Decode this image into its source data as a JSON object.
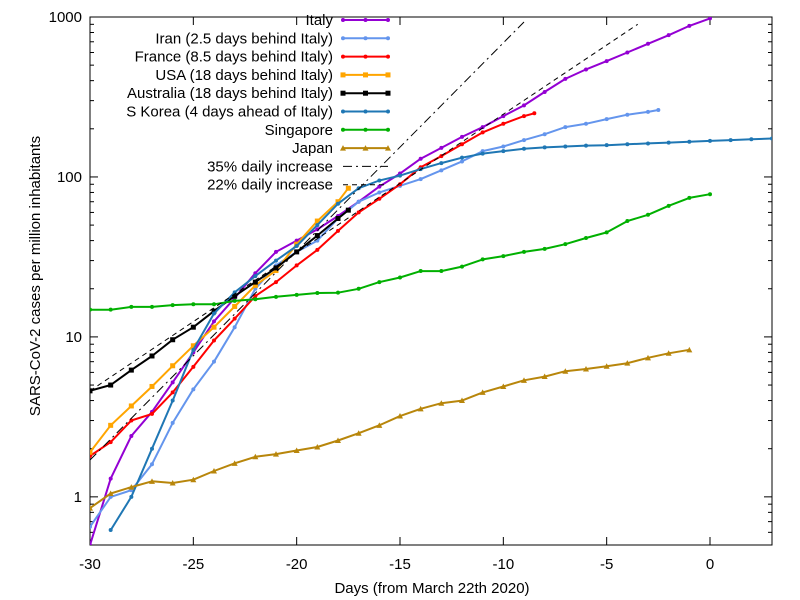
{
  "chart_data": {
    "type": "line",
    "title": "",
    "xlabel": "Days (from March 22th 2020)",
    "ylabel": "SARS-CoV-2 cases per million inhabitants",
    "yscale": "log",
    "xlim": [
      -30,
      3
    ],
    "ylim": [
      0.5,
      1000
    ],
    "x_ticks": [
      -30,
      -25,
      -20,
      -15,
      -10,
      -5,
      0
    ],
    "x_tick_labels": [
      "-30",
      "-25",
      "-20",
      "-15",
      "-10",
      "-5",
      "0"
    ],
    "y_ticks": [
      1,
      10,
      100,
      1000
    ],
    "y_tick_labels": [
      "1",
      "10",
      "100",
      "1000"
    ],
    "legend_position": "top-right",
    "series": [
      {
        "name": "Italy",
        "color": "#9400d3",
        "marker": "dot",
        "x": [
          -30,
          -29,
          -28,
          -27,
          -26,
          -25,
          -24,
          -23,
          -22,
          -21,
          -20,
          -19,
          -18,
          -17,
          -16,
          -15,
          -14,
          -13,
          -12,
          -11,
          -10,
          -9,
          -8,
          -7,
          -6,
          -5,
          -4,
          -3,
          -2,
          -1,
          0
        ],
        "y": [
          0.5,
          1.3,
          2.4,
          3.4,
          5.2,
          8.0,
          12.5,
          17.5,
          25,
          34,
          40,
          47,
          57,
          70,
          87,
          105,
          130,
          152,
          178,
          205,
          240,
          280,
          340,
          410,
          470,
          530,
          600,
          680,
          770,
          880,
          980
        ]
      },
      {
        "name": "Iran (2.5 days behind Italy)",
        "color": "#6495ed",
        "marker": "dot",
        "x": [
          -30,
          -29,
          -28,
          -27,
          -26,
          -25,
          -24,
          -23,
          -22,
          -21,
          -20,
          -19,
          -18,
          -17,
          -16,
          -15,
          -14,
          -13,
          -12,
          -11,
          -10,
          -9,
          -8,
          -7,
          -6,
          -5,
          -4,
          -3,
          -2.5
        ],
        "y": [
          0.65,
          1.0,
          1.1,
          1.6,
          2.9,
          4.7,
          7.0,
          11.5,
          20,
          28,
          34,
          40,
          55,
          70,
          80,
          88,
          97,
          110,
          125,
          145,
          155,
          170,
          185,
          205,
          215,
          230,
          245,
          255,
          262
        ]
      },
      {
        "name": "France (8.5 days behind Italy)",
        "color": "#ff0000",
        "marker": "dot",
        "x": [
          -30,
          -29,
          -28,
          -27,
          -26,
          -25,
          -24,
          -23,
          -22,
          -21,
          -20,
          -19,
          -18,
          -17,
          -16,
          -15,
          -14,
          -13,
          -12,
          -11,
          -10,
          -9,
          -8.5
        ],
        "y": [
          1.8,
          2.2,
          3.0,
          3.3,
          4.5,
          6.5,
          9.5,
          13,
          18,
          22,
          28,
          35,
          46,
          60,
          73,
          90,
          115,
          135,
          160,
          190,
          215,
          240,
          250
        ]
      },
      {
        "name": "USA (18 days behind Italy)",
        "color": "#ffa500",
        "marker": "square",
        "x": [
          -30,
          -29,
          -28,
          -27,
          -26,
          -25,
          -24,
          -23,
          -22,
          -21,
          -20,
          -19,
          -18,
          -17.5
        ],
        "y": [
          1.9,
          2.8,
          3.7,
          4.9,
          6.6,
          8.8,
          11.5,
          15.5,
          21,
          26,
          38,
          53,
          70,
          85
        ]
      },
      {
        "name": "Australia (18 days behind Italy)",
        "color": "#000000",
        "marker": "square",
        "x": [
          -30,
          -29,
          -28,
          -27,
          -26,
          -25,
          -24,
          -23,
          -22,
          -21,
          -20,
          -19,
          -18,
          -17.5
        ],
        "y": [
          4.6,
          5.0,
          6.2,
          7.6,
          9.6,
          11.5,
          14.5,
          18,
          22,
          27,
          34,
          43,
          55,
          62
        ]
      },
      {
        "name": "S Korea (4 days ahead of Italy)",
        "color": "#1f77b4",
        "marker": "dot",
        "x": [
          -29,
          -28,
          -27,
          -26,
          -25,
          -24,
          -23,
          -22,
          -21,
          -20,
          -19,
          -18,
          -17,
          -16,
          -15,
          -14,
          -13,
          -12,
          -11,
          -10,
          -9,
          -8,
          -7,
          -6,
          -5,
          -4,
          -3,
          -2,
          -1,
          0,
          1,
          2,
          3
        ],
        "y": [
          0.62,
          1.0,
          2.0,
          4.0,
          8.3,
          14,
          19,
          24,
          30,
          37,
          50,
          68,
          85,
          95,
          102,
          112,
          122,
          132,
          140,
          145,
          150,
          153,
          155,
          157,
          158,
          160,
          162,
          164,
          166,
          168,
          170,
          172,
          174
        ]
      },
      {
        "name": "Singapore",
        "color": "#00b000",
        "marker": "dot",
        "x": [
          -30,
          -29,
          -28,
          -27,
          -26,
          -25,
          -24,
          -23,
          -22,
          -21,
          -20,
          -19,
          -18,
          -17,
          -16,
          -15,
          -14,
          -13,
          -12,
          -11,
          -10,
          -9,
          -8,
          -7,
          -6,
          -5,
          -4,
          -3,
          -2,
          -1,
          0
        ],
        "y": [
          14.8,
          14.8,
          15.4,
          15.4,
          15.8,
          16.0,
          16.0,
          16.8,
          17.2,
          17.8,
          18.3,
          18.8,
          18.9,
          20.0,
          22,
          23.5,
          25.8,
          25.8,
          27.5,
          30.5,
          32,
          34,
          35.5,
          38,
          41.5,
          45,
          53,
          58,
          66,
          74,
          78
        ]
      },
      {
        "name": "Japan",
        "color": "#b8860b",
        "marker": "triangle",
        "x": [
          -30,
          -29,
          -28,
          -27,
          -26,
          -25,
          -24,
          -23,
          -22,
          -21,
          -20,
          -19,
          -18,
          -17,
          -16,
          -15,
          -14,
          -13,
          -12,
          -11,
          -10,
          -9,
          -8,
          -7,
          -6,
          -5,
          -4,
          -3,
          -2,
          -1
        ],
        "y": [
          0.85,
          1.05,
          1.15,
          1.25,
          1.22,
          1.28,
          1.45,
          1.62,
          1.78,
          1.85,
          1.95,
          2.05,
          2.25,
          2.5,
          2.8,
          3.2,
          3.55,
          3.85,
          4.0,
          4.5,
          4.9,
          5.35,
          5.65,
          6.1,
          6.3,
          6.55,
          6.85,
          7.4,
          7.9,
          8.3
        ]
      },
      {
        "name": "35% daily increase",
        "color": "#000000",
        "dash": "dashdot",
        "marker": "none",
        "x": [
          -30,
          -9
        ],
        "y": [
          1.7,
          930
        ]
      },
      {
        "name": "22% daily increase",
        "color": "#000000",
        "dash": "dashed",
        "marker": "none",
        "x": [
          -30,
          -3.5
        ],
        "y": [
          4.6,
          900
        ]
      }
    ]
  }
}
